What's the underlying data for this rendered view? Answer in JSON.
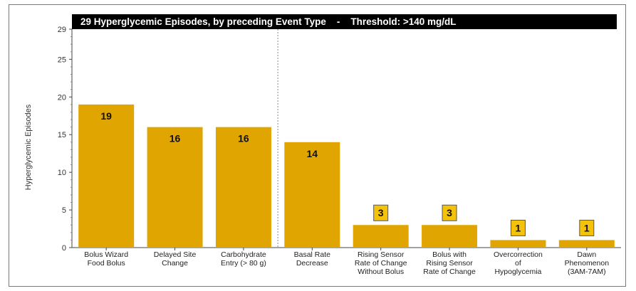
{
  "chart_data": {
    "type": "bar",
    "title": "29 Hyperglycemic Episodes, by preceding Event Type    -    Threshold: >140 mg/dL",
    "ylabel": "Hyperglycemic Episodes",
    "xlabel": "",
    "ylim": [
      0,
      29
    ],
    "yticks": [
      "0",
      "5",
      "10",
      "15",
      "20",
      "25",
      "29"
    ],
    "grid": false,
    "divider_after_category_index": 2,
    "bar_color": "#e0a500",
    "label_box_color": "#f5c20a",
    "categories": [
      [
        "Bolus Wizard",
        "Food Bolus"
      ],
      [
        "Delayed Site",
        "Change"
      ],
      [
        "Carbohydrate",
        "Entry (> 80 g)"
      ],
      [
        "Basal Rate",
        "Decrease"
      ],
      [
        "Rising Sensor",
        "Rate of Change",
        "Without Bolus"
      ],
      [
        "Bolus with",
        "Rising Sensor",
        "Rate of Change"
      ],
      [
        "Overcorrection",
        "of",
        "Hypoglycemia"
      ],
      [
        "Dawn",
        "Phenomenon",
        "(3AM-7AM)"
      ]
    ],
    "values": [
      19,
      16,
      16,
      14,
      3,
      3,
      1,
      1
    ]
  }
}
